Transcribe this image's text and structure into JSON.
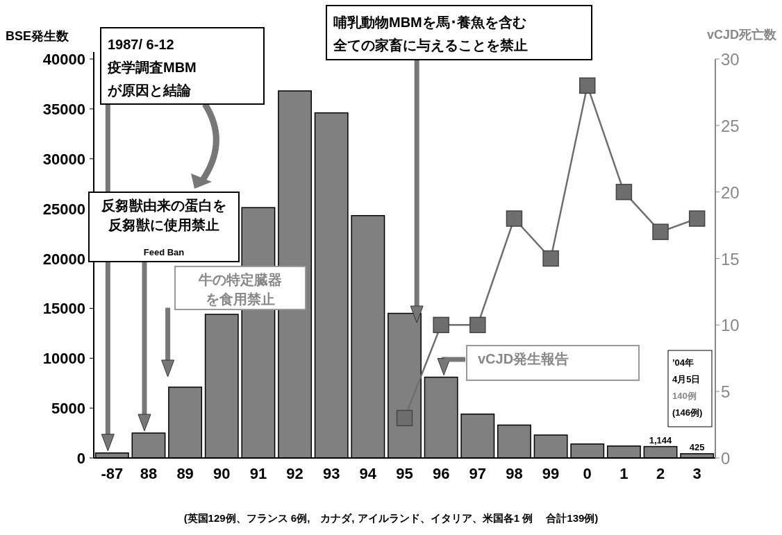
{
  "chart_data": {
    "type": "bar",
    "ylabel": "BSE発生数",
    "y2label": "vCJD死亡数",
    "categories": [
      "-87",
      "88",
      "89",
      "90",
      "91",
      "92",
      "93",
      "94",
      "95",
      "96",
      "97",
      "98",
      "99",
      "0",
      "1",
      "2",
      "3"
    ],
    "series": [
      {
        "color": "#808080",
        "values": [
          500,
          2500,
          7100,
          14400,
          25100,
          36800,
          34600,
          24300,
          14500,
          8100,
          4400,
          3300,
          2300,
          1400,
          1200,
          1144,
          425
        ],
        "value_labels": [
          null,
          null,
          null,
          null,
          null,
          null,
          null,
          null,
          null,
          null,
          null,
          null,
          null,
          null,
          null,
          "1,144",
          "425"
        ]
      },
      {
        "type": "line",
        "axis": "y2",
        "color": "#6e6e6e",
        "marker": "square",
        "values": [
          null,
          null,
          null,
          null,
          null,
          null,
          null,
          null,
          3,
          10,
          10,
          18,
          15,
          28,
          20,
          17,
          18
        ]
      }
    ],
    "ylim": [
      0,
      40000
    ],
    "yticks": [
      0,
      5000,
      10000,
      15000,
      20000,
      25000,
      30000,
      35000,
      40000
    ],
    "y2lim": [
      0,
      30
    ],
    "y2ticks": [
      0,
      5,
      10,
      15,
      20,
      25,
      30
    ],
    "grid": false,
    "annotations": [
      "1987/ 6-12\n疫学調査MBM\nが原因と結論",
      "反芻獣由来の蛋白を反芻獣に使用禁止",
      "Feed Ban",
      "牛の特定臓器を食用禁止",
      "哺乳動物MBMを馬･養魚を含む全ての家畜に与えることを禁止",
      "vCJD発生報告",
      "’04年\n4月5日\n140例\n(146例)",
      "(英国129例、フランス 6例,　カナダ, アイルランド、イタリア、米国各1 例　 合計139例)"
    ]
  }
}
